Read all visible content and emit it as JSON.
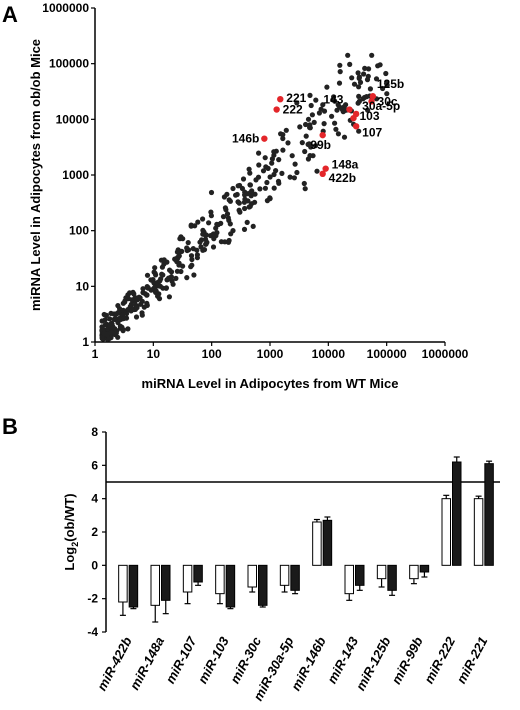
{
  "chart_data": [
    {
      "panel": "A",
      "type": "scatter",
      "xlabel": "miRNA Level in Adipocytes from WT Mice",
      "ylabel": "miRNA Level in Adipocytes from ob/ob Mice",
      "xscale": "log",
      "yscale": "log",
      "xlim": [
        1,
        1000000
      ],
      "ylim": [
        1,
        1000000
      ],
      "xticks": [
        "1",
        "10",
        "100",
        "1000",
        "10000",
        "100000",
        "1000000"
      ],
      "yticks": [
        "1",
        "10",
        "100",
        "1000",
        "10000",
        "100000",
        "1000000"
      ],
      "colors": {
        "background_points": "#222222",
        "highlight_points": "#e3262a"
      },
      "highlighted": [
        {
          "name": "221",
          "x": 1500,
          "y": 23000
        },
        {
          "name": "222",
          "x": 1300,
          "y": 15000
        },
        {
          "name": "146b",
          "x": 800,
          "y": 4500
        },
        {
          "name": "99b",
          "x": 8000,
          "y": 5200
        },
        {
          "name": "143",
          "x": 23000,
          "y": 15000
        },
        {
          "name": "125b",
          "x": 58000,
          "y": 26000
        },
        {
          "name": "30c",
          "x": 55000,
          "y": 21000
        },
        {
          "name": "30a-5p",
          "x": 30000,
          "y": 12500
        },
        {
          "name": "103",
          "x": 27000,
          "y": 10500
        },
        {
          "name": "107",
          "x": 30000,
          "y": 7500
        },
        {
          "name": "148a",
          "x": 9000,
          "y": 1300
        },
        {
          "name": "422b",
          "x": 8000,
          "y": 1050
        }
      ]
    },
    {
      "panel": "B",
      "type": "bar",
      "ylabel": "Log2(ob/WT)",
      "ylabel_main": "Log",
      "ylabel_sub": "2",
      "ylabel_tail": "(ob/WT)",
      "ylim": [
        -4,
        8
      ],
      "yticks": [
        "-4",
        "-2",
        "0",
        "2",
        "4",
        "6",
        "8"
      ],
      "categories": [
        "miR-422b",
        "miR-148a",
        "miR-107",
        "miR-103",
        "miR-30c",
        "miR-30a-5p",
        "miR-146b",
        "miR-143",
        "miR-125b",
        "miR-99b",
        "miR-222",
        "miR-221"
      ],
      "series": [
        {
          "color": "#ffffff",
          "values": [
            -2.2,
            -2.4,
            -1.6,
            -1.7,
            -1.3,
            -1.2,
            2.6,
            -1.7,
            -0.8,
            -0.8,
            4.0,
            4.0
          ],
          "errors": [
            0.8,
            1.0,
            0.7,
            0.6,
            0.3,
            0.4,
            0.15,
            0.4,
            0.5,
            0.3,
            0.2,
            0.15
          ]
        },
        {
          "color": "#1a1a1a",
          "values": [
            -2.5,
            -2.1,
            -1.0,
            -2.5,
            -2.4,
            -1.5,
            2.7,
            -1.2,
            -1.5,
            -0.4,
            6.2,
            6.1
          ],
          "errors": [
            0.1,
            0.8,
            0.2,
            0.1,
            0.1,
            0.2,
            0.2,
            0.3,
            0.3,
            0.3,
            0.3,
            0.15
          ]
        }
      ]
    }
  ]
}
